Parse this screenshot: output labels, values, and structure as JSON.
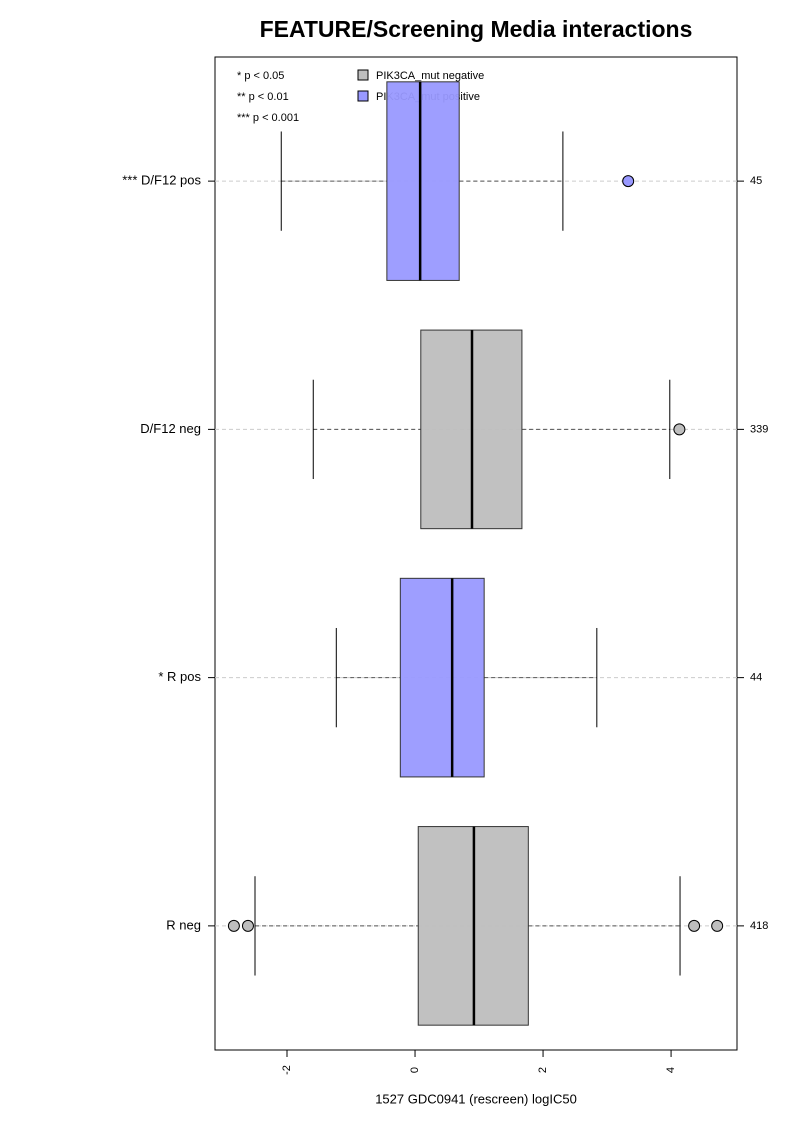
{
  "chart_data": {
    "type": "boxplot",
    "title": "FEATURE/Screening Media interactions",
    "xlabel": "1527 GDC0941 (rescreen) logIC50",
    "xlim": [
      -3.125,
      5.03
    ],
    "xticks": [
      -2,
      0,
      2,
      4
    ],
    "notes": [
      "* p < 0.05",
      "** p < 0.01",
      "*** p < 0.001"
    ],
    "series": [
      {
        "name": "PIK3CA_mut negative",
        "color": "#bebebe"
      },
      {
        "name": "PIK3CA_mut positive",
        "color": "#9999ff"
      }
    ],
    "groups": [
      {
        "label": "*** D/F12 pos",
        "n": 45,
        "series": 1,
        "whisker_low": -2.09,
        "q1": -0.44,
        "median": 0.08,
        "q3": 0.69,
        "whisker_high": 2.31,
        "outliers": [
          3.33
        ]
      },
      {
        "label": "D/F12 neg",
        "n": 339,
        "series": 0,
        "whisker_low": -1.59,
        "q1": 0.09,
        "median": 0.89,
        "q3": 1.67,
        "whisker_high": 3.98,
        "outliers": [
          4.13
        ]
      },
      {
        "label": "* R pos",
        "n": 44,
        "series": 1,
        "whisker_low": -1.23,
        "q1": -0.23,
        "median": 0.58,
        "q3": 1.08,
        "whisker_high": 2.84,
        "outliers": []
      },
      {
        "label": "R neg",
        "n": 418,
        "series": 0,
        "whisker_low": -2.5,
        "q1": 0.05,
        "median": 0.92,
        "q3": 1.77,
        "whisker_high": 4.14,
        "outliers": [
          -2.83,
          -2.61,
          4.36,
          4.72
        ]
      }
    ]
  }
}
